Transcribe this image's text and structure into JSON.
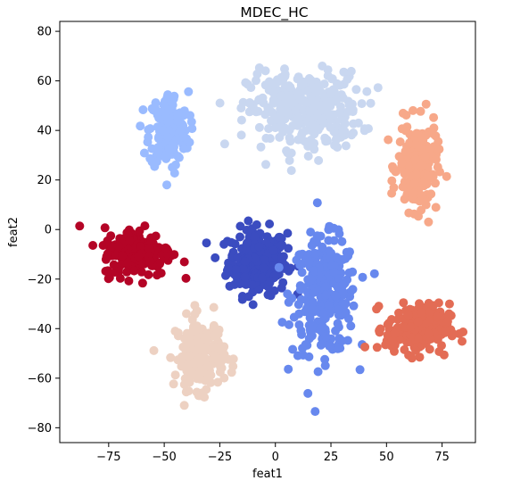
{
  "chart_data": {
    "type": "scatter",
    "title": "MDEC_HC",
    "xlabel": "feat1",
    "ylabel": "feat2",
    "xlim": [
      -97,
      90
    ],
    "ylim": [
      -86,
      84
    ],
    "xticks": [
      -75,
      -50,
      -25,
      0,
      25,
      50,
      75
    ],
    "yticks": [
      -80,
      -60,
      -40,
      -20,
      0,
      20,
      40,
      60,
      80
    ],
    "grid": false,
    "legend": "none",
    "colormap": "coolwarm",
    "clusters": [
      {
        "color": "#3b4cc0",
        "center": [
          -8,
          -13
        ],
        "spread": [
          12,
          12
        ],
        "count": 260
      },
      {
        "color": "#6788ee",
        "center": [
          22,
          -27
        ],
        "spread": [
          13,
          21
        ],
        "count": 300
      },
      {
        "color": "#9abbff",
        "center": [
          -48,
          40
        ],
        "spread": [
          8,
          14
        ],
        "count": 170
      },
      {
        "color": "#c9d7f0",
        "center": [
          13,
          48
        ],
        "spread": [
          23,
          14
        ],
        "count": 340
      },
      {
        "color": "#edd1c2",
        "center": [
          -34,
          -50
        ],
        "spread": [
          10,
          13
        ],
        "count": 190
      },
      {
        "color": "#f7a889",
        "center": [
          64,
          25
        ],
        "spread": [
          8,
          16
        ],
        "count": 190
      },
      {
        "color": "#e36c55",
        "center": [
          64,
          -40
        ],
        "spread": [
          13,
          9
        ],
        "count": 210
      },
      {
        "color": "#b40426",
        "center": [
          -62,
          -9
        ],
        "spread": [
          14,
          9
        ],
        "count": 200
      }
    ]
  }
}
